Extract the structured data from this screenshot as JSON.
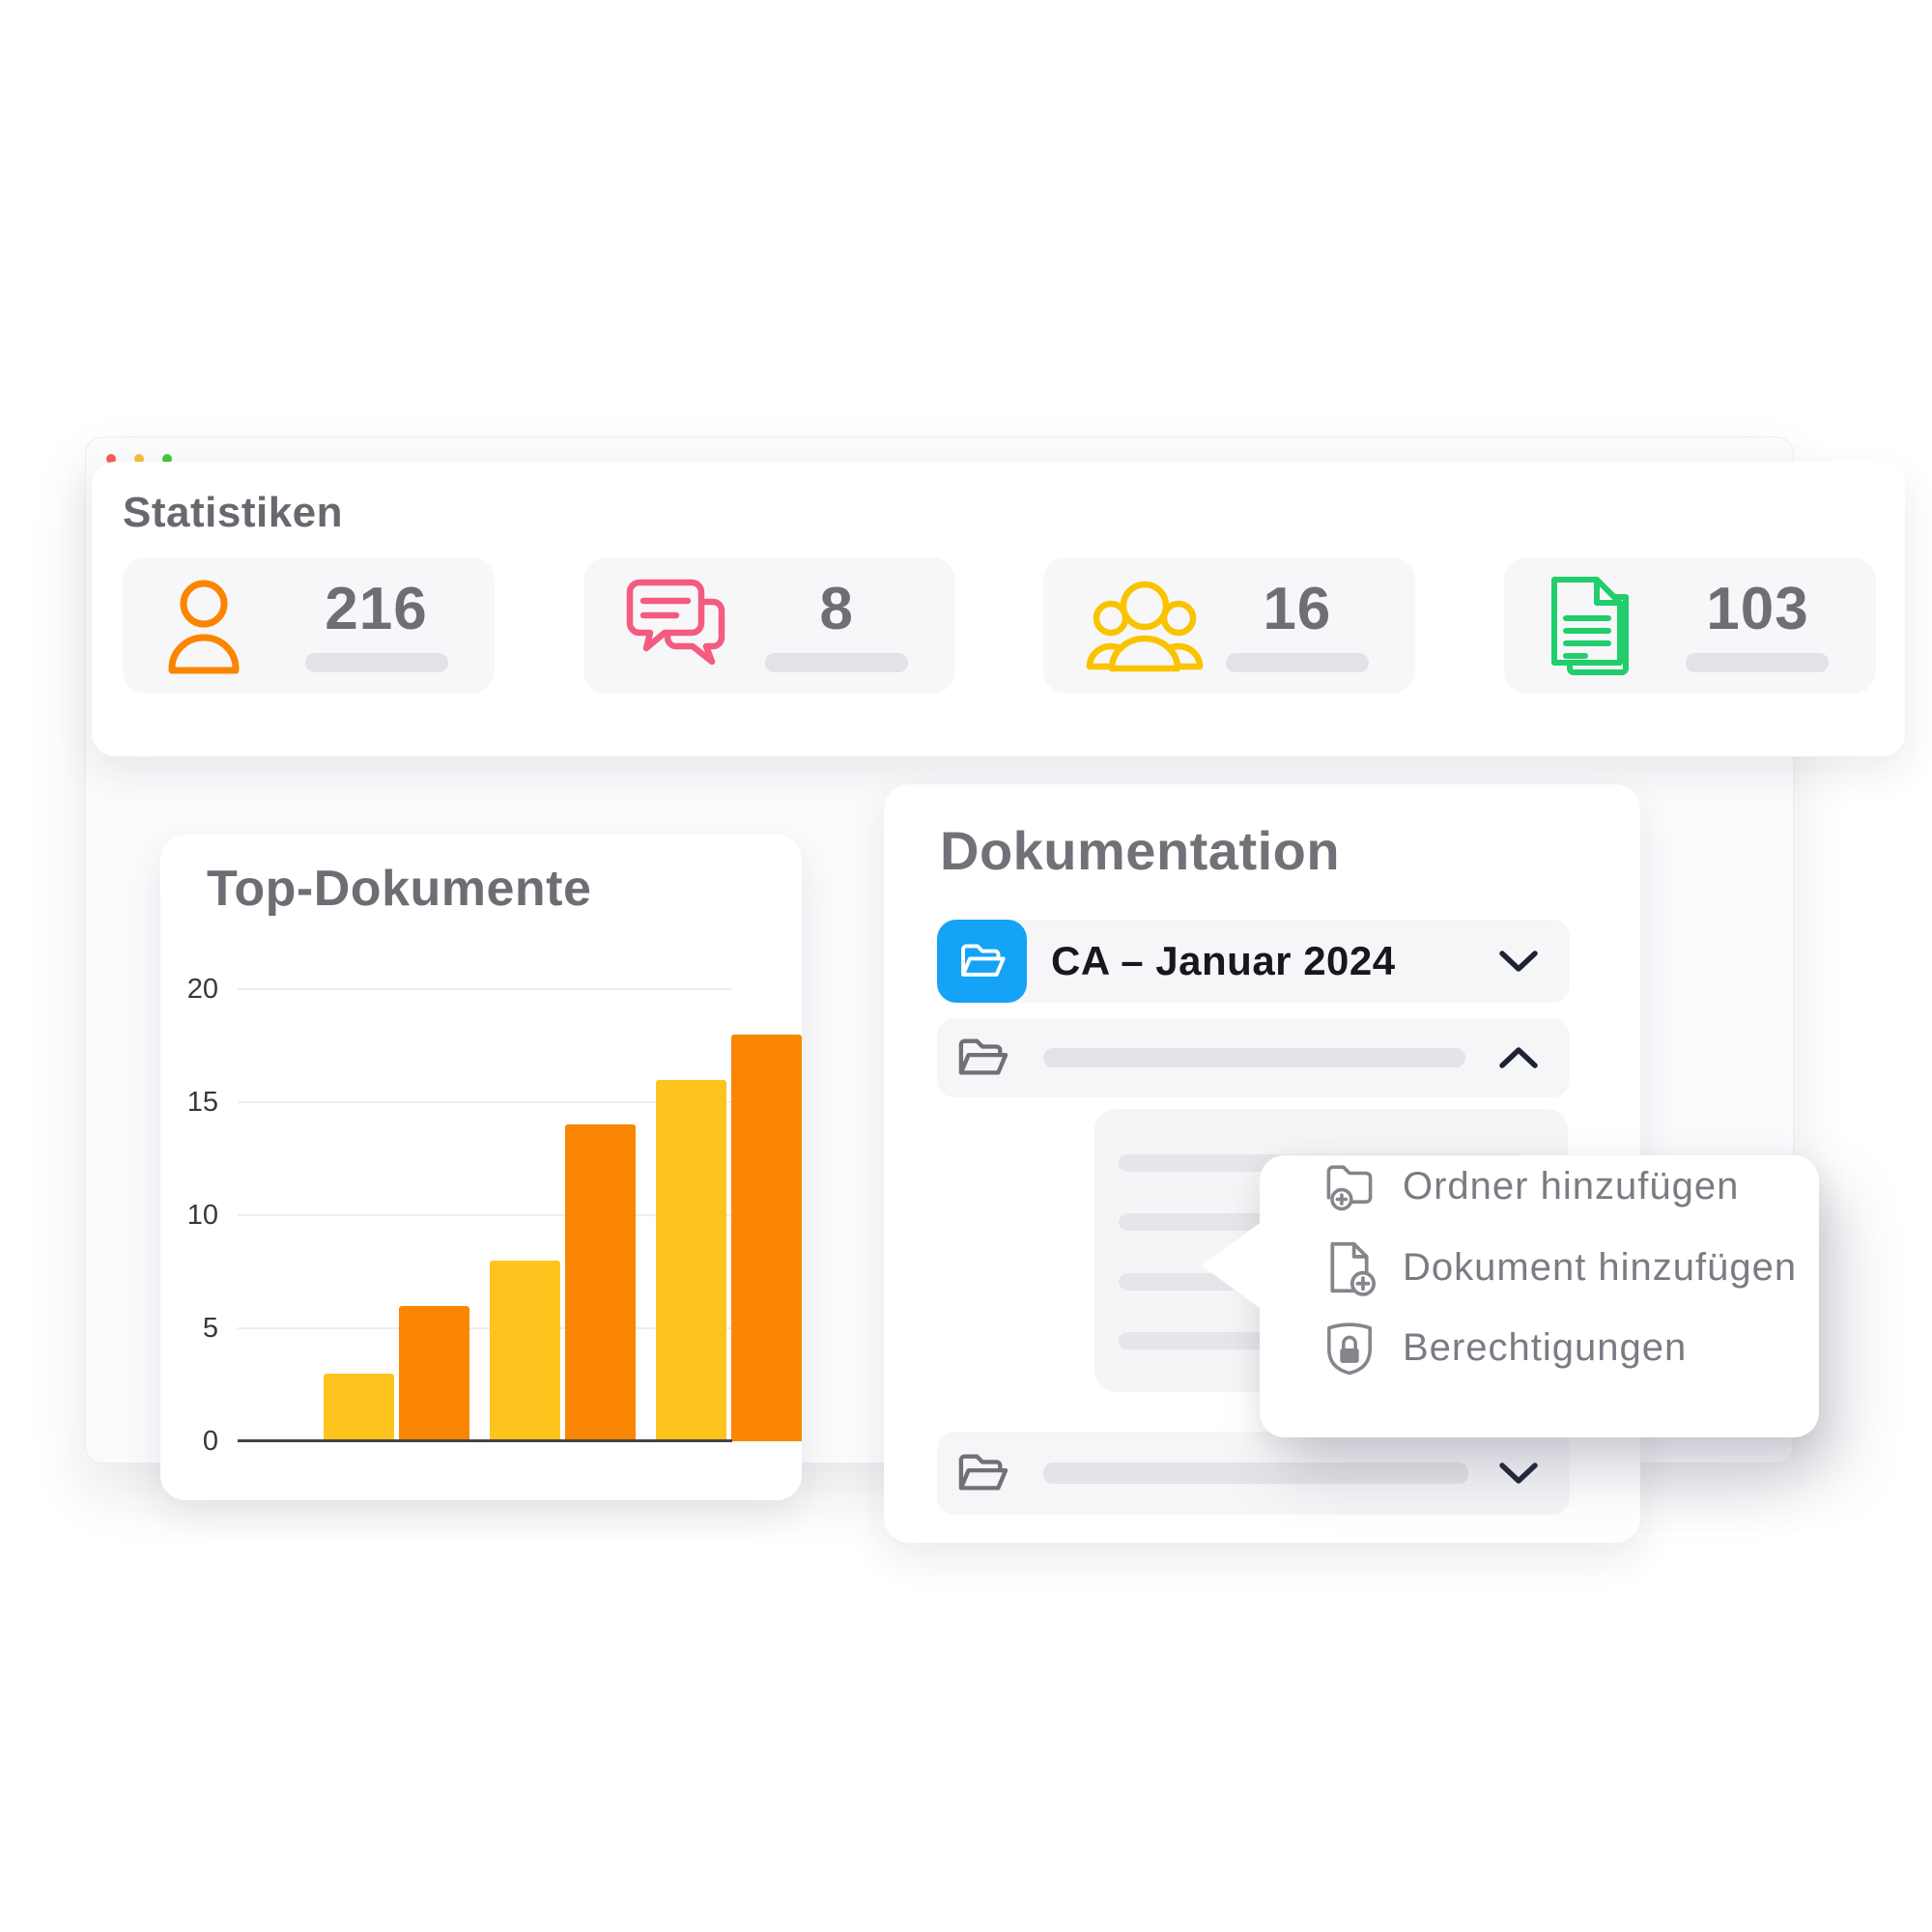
{
  "window": {
    "traffic_lights": [
      {
        "name": "close",
        "color": "#F35F58"
      },
      {
        "name": "minimize",
        "color": "#F6BD3B"
      },
      {
        "name": "maximize",
        "color": "#45C73F"
      }
    ]
  },
  "stats": {
    "title": "Statistiken",
    "items": [
      {
        "icon": "person-icon",
        "value": "216",
        "color": "#FB8500"
      },
      {
        "icon": "chat-icon",
        "value": "8",
        "color": "#F25C7F"
      },
      {
        "icon": "group-icon",
        "value": "16",
        "color": "#F9C300"
      },
      {
        "icon": "documents-icon",
        "value": "103",
        "color": "#21CE6B"
      }
    ]
  },
  "chart_data": {
    "type": "bar",
    "title": "Top-Dokumente",
    "categories": [
      "",
      "",
      "",
      "",
      "",
      ""
    ],
    "values": [
      3,
      6,
      8,
      14,
      16,
      18
    ],
    "bar_colors": [
      "#FFC31E",
      "#FB8604",
      "#FFC31E",
      "#FB8604",
      "#FFC31E",
      "#FB8604"
    ],
    "y_ticks": [
      0,
      5,
      10,
      15,
      20
    ],
    "ylim": [
      0,
      20
    ],
    "grid": true,
    "legend": false,
    "xlabel": "",
    "ylabel": ""
  },
  "documentation": {
    "title": "Dokumentation",
    "rows": [
      {
        "label": "CA – Januar 2024",
        "chevron": "down",
        "highlighted": true
      },
      {
        "label": "",
        "chevron": "up",
        "expanded": true
      },
      {
        "label": "",
        "chevron": "down",
        "highlighted": false
      }
    ],
    "context_menu": {
      "items": [
        {
          "icon": "folder-plus-icon",
          "label": "Ordner hinzufügen"
        },
        {
          "icon": "document-plus-icon",
          "label": "Dokument hinzufügen"
        },
        {
          "icon": "shield-lock-icon",
          "label": "Berechtigungen"
        }
      ]
    }
  }
}
